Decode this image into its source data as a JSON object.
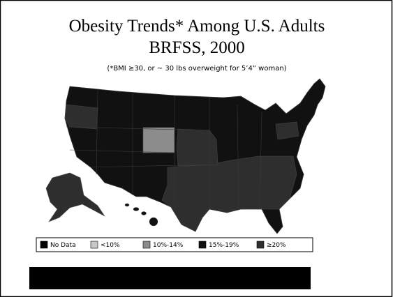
{
  "title": [
    "Obesity Trends* Among U.S. Adults",
    "BRFSS, 2000"
  ],
  "subtitle": "(*BMI ≥30, or ~ 30 lbs overweight for 5’4” woman)",
  "legend": [
    {
      "label": "No Data",
      "color": "#000000"
    },
    {
      "label": "<10%",
      "color": "#c8c8c8"
    },
    {
      "label": "10%-14%",
      "color": "#8c8c8c"
    },
    {
      "label": "15%-19%",
      "color": "#111111"
    },
    {
      "label": "≥20%",
      "color": "#2e2e2e"
    }
  ]
}
